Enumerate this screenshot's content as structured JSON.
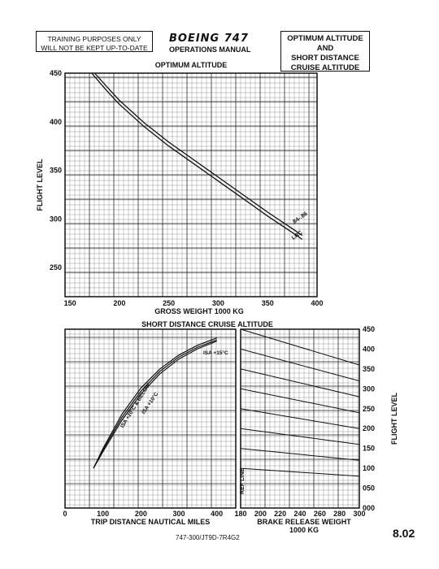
{
  "header": {
    "notice_line1": "TRAINING PURPOSES ONLY",
    "notice_line2": "WILL NOT BE KEPT UP-TO-DATE",
    "brand": "BOEING 747",
    "manual": "OPERATIONS MANUAL",
    "box_line1": "OPTIMUM ALTITUDE",
    "box_line2": "AND",
    "box_line3": "SHORT DISTANCE",
    "box_line4": "CRUISE ALTITUDE"
  },
  "footer": {
    "code": "747-300/JT9D-7R4G2",
    "page": "8.02"
  },
  "chart_data": [
    {
      "type": "line",
      "title": "OPTIMUM ALTITUDE",
      "xlabel": "GROSS WEIGHT 1000 KG",
      "ylabel": "FLIGHT LEVEL",
      "xlim": [
        145,
        400
      ],
      "ylim": [
        220,
        450
      ],
      "xticks": [
        150,
        200,
        250,
        300,
        350,
        400
      ],
      "yticks": [
        250,
        300,
        350,
        400,
        450
      ],
      "grid": true,
      "series": [
        {
          "name": ".84-.86",
          "x": [
            175,
            190,
            200,
            225,
            250,
            275,
            300,
            325,
            350,
            375,
            385
          ],
          "y": [
            450,
            433,
            422,
            399,
            379,
            361,
            343,
            325,
            307,
            290,
            283
          ]
        },
        {
          "name": "LRC",
          "x": [
            172,
            188,
            200,
            225,
            250,
            275,
            300,
            325,
            350,
            375,
            385
          ],
          "y": [
            450,
            431,
            418,
            395,
            375,
            357,
            339,
            321,
            303,
            286,
            279
          ]
        }
      ]
    },
    {
      "type": "line",
      "title": "SHORT DISTANCE CRUISE ALTITUDE",
      "xlabel": "TRIP DISTANCE NAUTICAL MILES",
      "ylabel": "",
      "xlim": [
        0,
        450
      ],
      "ylim": [
        0,
        450
      ],
      "xticks": [
        0,
        100,
        200,
        300,
        400
      ],
      "grid": true,
      "series": [
        {
          "name": "ISA +20°C & BELOW",
          "x": [
            75,
            100,
            150,
            200,
            250,
            300,
            350,
            400
          ],
          "y": [
            100,
            150,
            236,
            302,
            350,
            385,
            410,
            428
          ]
        },
        {
          "name": "ISA +10°C",
          "x": [
            75,
            100,
            150,
            200,
            250,
            300,
            350,
            400
          ],
          "y": [
            100,
            146,
            228,
            294,
            344,
            380,
            405,
            423
          ]
        },
        {
          "name": "ISA +15°C",
          "x": [
            75,
            100,
            150,
            200,
            250,
            300,
            350,
            400
          ],
          "y": [
            100,
            142,
            221,
            287,
            338,
            375,
            401,
            420
          ]
        }
      ]
    },
    {
      "type": "line",
      "title": "",
      "xlabel": "BRAKE RELEASE WEIGHT",
      "xlabel2": "1000 KG",
      "ylabel": "FLIGHT LEVEL",
      "xlim": [
        180,
        300
      ],
      "ylim": [
        0,
        450
      ],
      "xticks": [
        180,
        200,
        220,
        240,
        260,
        280,
        300
      ],
      "yticks": [
        0,
        50,
        100,
        150,
        200,
        250,
        300,
        350,
        400,
        450
      ],
      "ytick_labels": [
        "000",
        "050",
        "100",
        "150",
        "200",
        "250",
        "300",
        "350",
        "400",
        "450"
      ],
      "ref_line_label": "REF LINE",
      "grid": true,
      "series": [
        {
          "x": [
            180,
            300
          ],
          "y": [
            450,
            360
          ]
        },
        {
          "x": [
            180,
            300
          ],
          "y": [
            400,
            320
          ]
        },
        {
          "x": [
            180,
            300
          ],
          "y": [
            350,
            280
          ]
        },
        {
          "x": [
            180,
            300
          ],
          "y": [
            300,
            240
          ]
        },
        {
          "x": [
            180,
            300
          ],
          "y": [
            250,
            200
          ]
        },
        {
          "x": [
            180,
            300
          ],
          "y": [
            200,
            160
          ]
        },
        {
          "x": [
            180,
            300
          ],
          "y": [
            150,
            120
          ]
        },
        {
          "x": [
            180,
            300
          ],
          "y": [
            100,
            80
          ]
        }
      ]
    }
  ]
}
